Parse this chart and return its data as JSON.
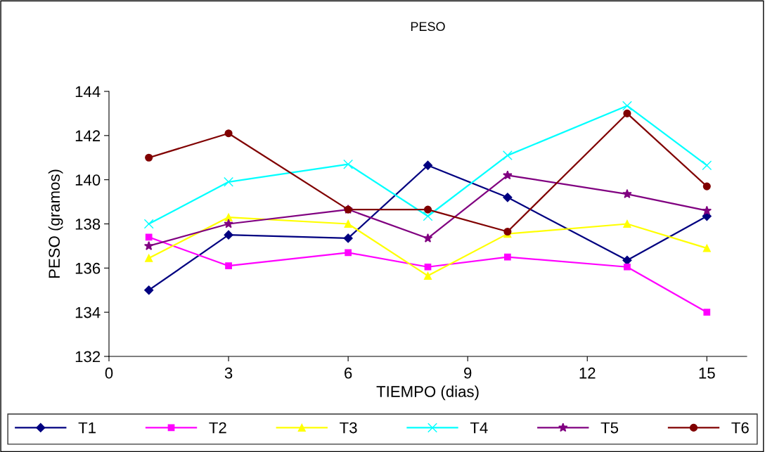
{
  "chart_data": {
    "type": "line",
    "title": "PESO",
    "xlabel": "TIEMPO (dias)",
    "ylabel": "PESO (gramos)",
    "x": [
      1,
      3,
      6,
      8,
      10,
      13,
      15
    ],
    "xlim": [
      0,
      16
    ],
    "xticks": [
      0,
      3,
      6,
      9,
      12,
      15
    ],
    "ylim": [
      132,
      144
    ],
    "yticks": [
      132,
      134,
      136,
      138,
      140,
      142,
      144
    ],
    "grid": false,
    "legend": "bottom",
    "series": [
      {
        "name": "T1",
        "color": "#000080",
        "marker": "diamond",
        "values": [
          135.0,
          137.5,
          137.35,
          140.65,
          139.2,
          136.35,
          138.35
        ]
      },
      {
        "name": "T2",
        "color": "#ff00ff",
        "marker": "square",
        "values": [
          137.4,
          136.1,
          136.7,
          136.05,
          136.5,
          136.05,
          134.0
        ]
      },
      {
        "name": "T3",
        "color": "#ffff00",
        "marker": "triangle",
        "values": [
          136.45,
          138.3,
          138.0,
          135.65,
          137.55,
          138.0,
          136.9
        ]
      },
      {
        "name": "T4",
        "color": "#00ffff",
        "marker": "cross",
        "values": [
          138.0,
          139.9,
          140.7,
          138.35,
          141.1,
          143.35,
          140.65
        ]
      },
      {
        "name": "T5",
        "color": "#800080",
        "marker": "star",
        "values": [
          137.0,
          138.0,
          138.65,
          137.35,
          140.2,
          139.35,
          138.6
        ]
      },
      {
        "name": "T6",
        "color": "#800000",
        "marker": "circle",
        "values": [
          141.0,
          142.1,
          138.65,
          138.65,
          137.65,
          143.0,
          139.7
        ]
      }
    ]
  }
}
